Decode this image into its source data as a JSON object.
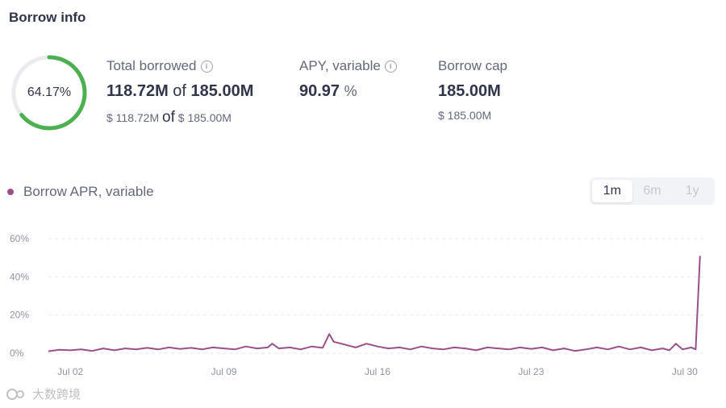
{
  "section": {
    "title": "Borrow info"
  },
  "utilization": {
    "label": "64.17%",
    "fraction": 0.6417,
    "color": "#4caf50"
  },
  "total_borrowed": {
    "label": "Total borrowed",
    "amount": "118.72M",
    "of": "of",
    "cap": "185.00M",
    "usd_amount": "$ 118.72M",
    "usd_of": "of",
    "usd_cap": "$ 185.00M"
  },
  "apy": {
    "label": "APY, variable",
    "value": "90.97",
    "unit": "%"
  },
  "borrow_cap": {
    "label": "Borrow cap",
    "value": "185.00M",
    "usd": "$ 185.00M"
  },
  "legend": {
    "label": "Borrow APR, variable",
    "color": "#9b4f8a"
  },
  "ranges": [
    {
      "label": "1m",
      "active": true
    },
    {
      "label": "6m",
      "active": false
    },
    {
      "label": "1y",
      "active": false
    }
  ],
  "watermark": {
    "text": "大数跨境"
  },
  "chart_data": {
    "type": "line",
    "ylim": [
      0,
      60
    ],
    "yticks": [
      "0%",
      "20%",
      "40%",
      "60%"
    ],
    "ytick_values": [
      0,
      20,
      40,
      60
    ],
    "xticks": [
      "Jul 02",
      "Jul 09",
      "Jul 16",
      "Jul 23",
      "Jul 30"
    ],
    "xtick_values": [
      2,
      9,
      16,
      23,
      30
    ],
    "xlim": [
      1,
      31
    ],
    "series": [
      {
        "color": "#9b4f8a",
        "x": [
          1.0,
          1.5,
          2.0,
          2.5,
          3.0,
          3.5,
          4.0,
          4.5,
          5.0,
          5.5,
          6.0,
          6.5,
          7.0,
          7.5,
          8.0,
          8.5,
          9.0,
          9.5,
          10.0,
          10.5,
          11.0,
          11.2,
          11.5,
          12.0,
          12.5,
          13.0,
          13.5,
          13.8,
          14.0,
          14.5,
          15.0,
          15.5,
          16.0,
          16.5,
          17.0,
          17.5,
          18.0,
          18.5,
          19.0,
          19.5,
          20.0,
          20.5,
          21.0,
          21.5,
          22.0,
          22.5,
          23.0,
          23.5,
          24.0,
          24.5,
          25.0,
          25.5,
          26.0,
          26.5,
          27.0,
          27.5,
          28.0,
          28.5,
          29.0,
          29.3,
          29.6,
          29.9,
          30.1,
          30.3,
          30.5,
          30.7
        ],
        "y": [
          1.0,
          1.8,
          1.5,
          2.0,
          1.2,
          2.5,
          1.5,
          2.5,
          2.0,
          2.8,
          2.0,
          3.0,
          2.2,
          2.8,
          2.0,
          3.0,
          2.5,
          2.0,
          3.5,
          2.5,
          3.0,
          5.0,
          2.5,
          3.0,
          2.0,
          3.5,
          2.8,
          10.0,
          6.0,
          4.5,
          3.0,
          5.0,
          3.5,
          2.5,
          3.0,
          2.0,
          3.5,
          2.5,
          2.0,
          3.0,
          2.5,
          1.5,
          3.0,
          2.5,
          2.0,
          3.0,
          2.2,
          3.0,
          1.5,
          2.5,
          1.2,
          2.0,
          3.0,
          2.0,
          3.5,
          2.0,
          3.0,
          1.5,
          2.5,
          1.5,
          5.0,
          2.0,
          2.5,
          3.0,
          2.0,
          51.0
        ]
      }
    ]
  }
}
